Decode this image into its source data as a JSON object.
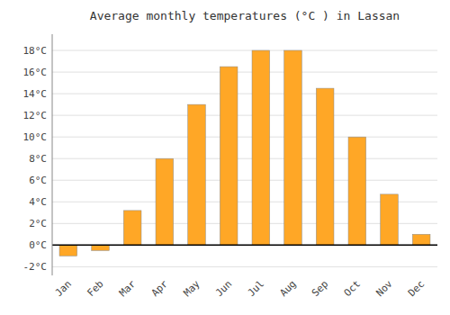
{
  "chart_data": {
    "type": "bar",
    "title": "Average monthly temperatures (°C ) in Lassan",
    "categories": [
      "Jan",
      "Feb",
      "Mar",
      "Apr",
      "May",
      "Jun",
      "Jul",
      "Aug",
      "Sep",
      "Oct",
      "Nov",
      "Dec"
    ],
    "values": [
      -1.0,
      -0.5,
      3.2,
      8.0,
      13.0,
      16.5,
      18.0,
      18.0,
      14.5,
      10.0,
      4.7,
      1.0
    ],
    "color": "#FFA726",
    "ylim": [
      -2.8,
      19.5
    ],
    "yticks": [
      {
        "value": -2,
        "label": "-2°C"
      },
      {
        "value": 0,
        "label": "0°C"
      },
      {
        "value": 2,
        "label": "2°C"
      },
      {
        "value": 4,
        "label": "4°C"
      },
      {
        "value": 6,
        "label": "6°C"
      },
      {
        "value": 8,
        "label": "8°C"
      },
      {
        "value": 10,
        "label": "10°C"
      },
      {
        "value": 12,
        "label": "12°C"
      },
      {
        "value": 14,
        "label": "14°C"
      },
      {
        "value": 16,
        "label": "16°C"
      },
      {
        "value": 18,
        "label": "18°C"
      }
    ],
    "grid": true
  }
}
